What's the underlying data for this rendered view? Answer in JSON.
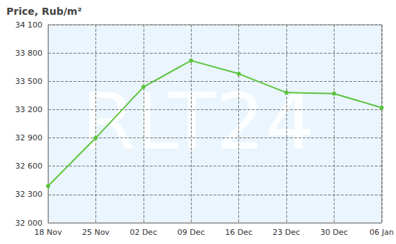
{
  "chart_data": {
    "type": "line",
    "title": "Price, Rub/m²",
    "categories": [
      "18 Nov",
      "25 Nov",
      "02 Dec",
      "09 Dec",
      "16 Dec",
      "23 Dec",
      "30 Dec",
      "06 Jan"
    ],
    "values": [
      32390,
      32900,
      33440,
      33720,
      33580,
      33380,
      33370,
      33220
    ],
    "color": "#5cc43c",
    "marker": "circle",
    "ylim": [
      32000,
      34100
    ],
    "yticks": [
      {
        "value": 32000,
        "label": "32 000"
      },
      {
        "value": 32300,
        "label": "32 300"
      },
      {
        "value": 32600,
        "label": "32 600"
      },
      {
        "value": 32900,
        "label": "32 900"
      },
      {
        "value": 33200,
        "label": "33 200"
      },
      {
        "value": 33500,
        "label": "33 500"
      },
      {
        "value": 33800,
        "label": "33 800"
      },
      {
        "value": 34100,
        "label": "34 100"
      }
    ],
    "grid": true,
    "annotations": [
      "RLT24"
    ]
  }
}
